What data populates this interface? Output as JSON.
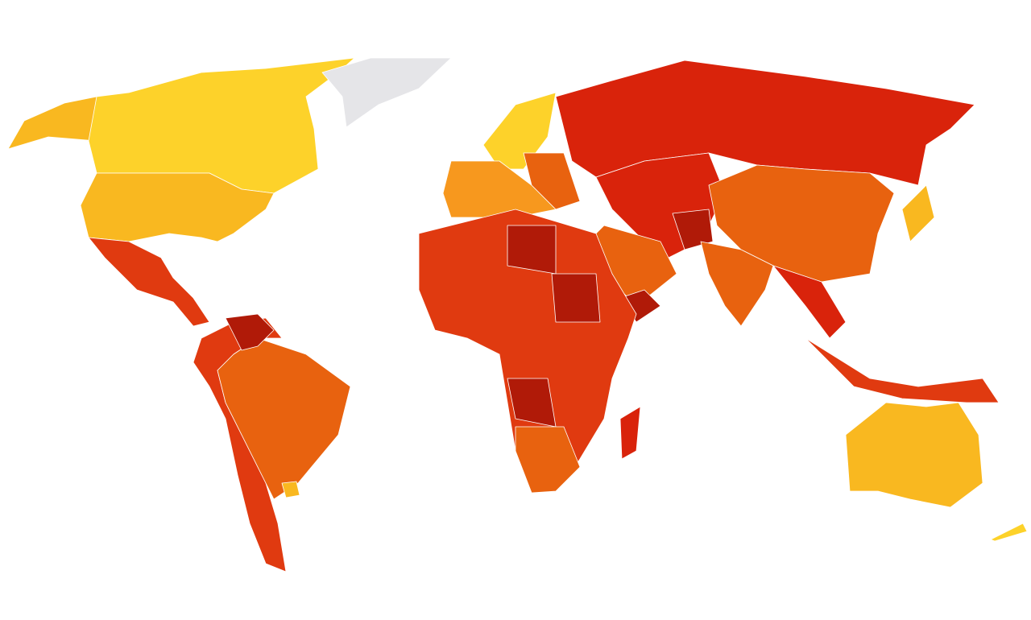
{
  "map": {
    "type": "choropleth",
    "palette": {
      "very_high": "#fdd22a",
      "high": "#f9b820",
      "upper_mid": "#f7981e",
      "mid": "#e8620f",
      "lower_mid": "#e03a10",
      "low": "#d9230b",
      "very_low": "#b01a08",
      "no_data": "#e5e5e8"
    },
    "regions": [
      {
        "shape": "r1",
        "level": "high"
      },
      {
        "shape": "r2",
        "level": "very_high"
      },
      {
        "shape": "r3",
        "level": "no_data"
      },
      {
        "shape": "r4",
        "level": "high"
      },
      {
        "shape": "r5",
        "level": "lower_mid"
      },
      {
        "shape": "r6",
        "level": "lower_mid"
      },
      {
        "shape": "r7",
        "level": "mid"
      },
      {
        "shape": "r8",
        "level": "very_low"
      },
      {
        "shape": "r9",
        "level": "very_high"
      },
      {
        "shape": "r10",
        "level": "upper_mid"
      },
      {
        "shape": "r11",
        "level": "mid"
      },
      {
        "shape": "r12",
        "level": "low"
      },
      {
        "shape": "r13",
        "level": "low"
      },
      {
        "shape": "r14",
        "level": "very_low"
      },
      {
        "shape": "r15",
        "level": "mid"
      },
      {
        "shape": "r16",
        "level": "mid"
      },
      {
        "shape": "r17",
        "level": "low"
      },
      {
        "shape": "r18",
        "level": "lower_mid"
      },
      {
        "shape": "r19",
        "level": "high"
      },
      {
        "shape": "r20",
        "level": "mid"
      },
      {
        "shape": "r21",
        "level": "very_low"
      },
      {
        "shape": "r22",
        "level": "lower_mid"
      },
      {
        "shape": "r23",
        "level": "very_low"
      },
      {
        "shape": "r24",
        "level": "very_low"
      },
      {
        "shape": "r25",
        "level": "very_low"
      },
      {
        "shape": "r26",
        "level": "mid"
      },
      {
        "shape": "r27",
        "level": "low"
      },
      {
        "shape": "r28",
        "level": "high"
      },
      {
        "shape": "r29",
        "level": "very_high"
      },
      {
        "shape": "r30",
        "level": "high"
      }
    ]
  }
}
